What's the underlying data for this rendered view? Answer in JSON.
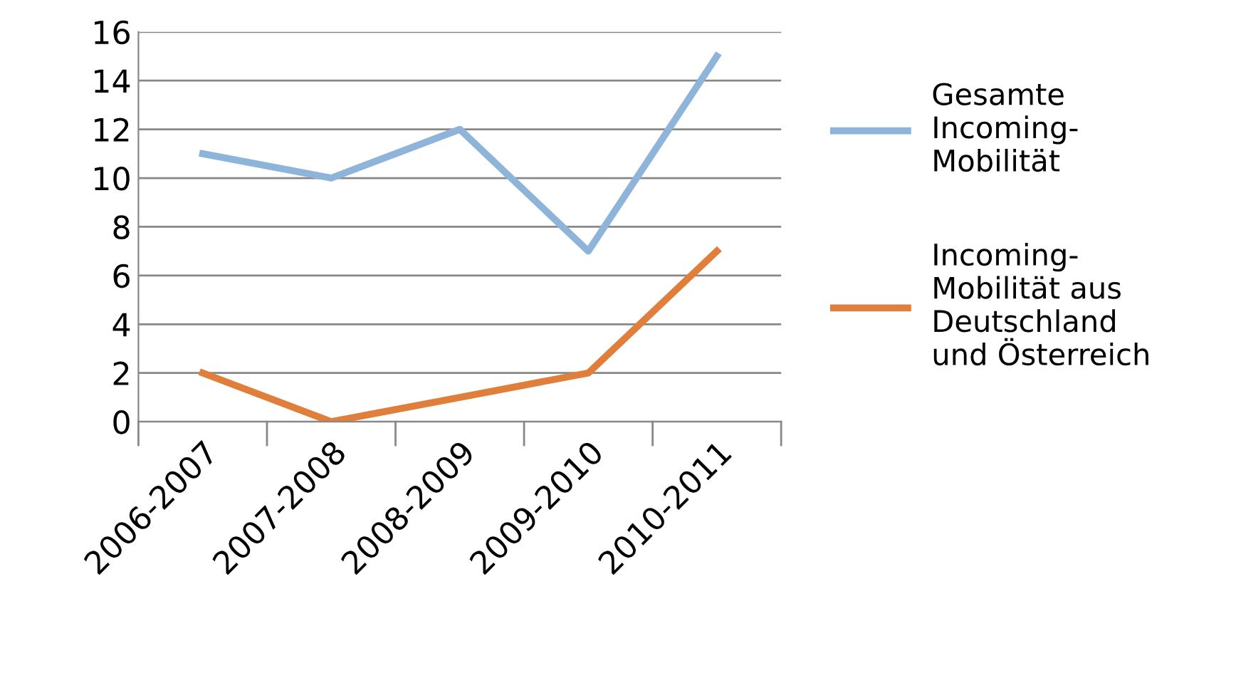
{
  "chart_data": {
    "type": "line",
    "categories": [
      "2006-2007",
      "2007-2008",
      "2008-2009",
      "2009-2010",
      "2010-2011"
    ],
    "series": [
      {
        "name": "Gesamte\nIncoming-\nMobilität",
        "color": "#8eb4d9",
        "values": [
          11,
          10,
          12,
          7,
          15
        ]
      },
      {
        "name": "Incoming-\nMobilität aus\nDeutschland\nund Österreich",
        "color": "#e07e3c",
        "values": [
          2,
          0,
          1,
          2,
          7
        ]
      }
    ],
    "ylim": [
      0,
      16
    ],
    "yticks": [
      0,
      2,
      4,
      6,
      8,
      10,
      12,
      14,
      16
    ],
    "grid": "y",
    "legend": "right",
    "marker": "none",
    "line_style": "solid"
  }
}
